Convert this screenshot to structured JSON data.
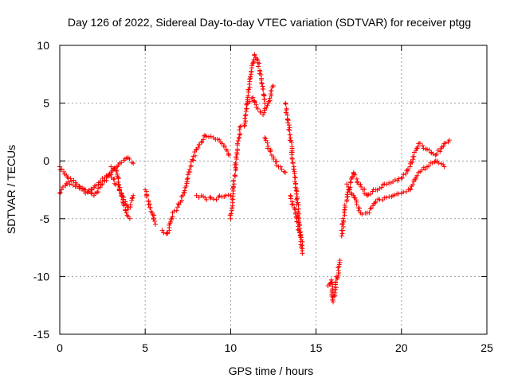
{
  "chart_data": {
    "type": "scatter",
    "title": "Day 126 of 2022, Sidereal Day-to-day VTEC variation (SDTVAR) for receiver ptgg",
    "xlabel": "GPS time / hours",
    "ylabel": "SDTVAR / TECUs",
    "xlim": [
      0,
      25
    ],
    "ylim": [
      -15,
      10
    ],
    "x_ticks": [
      0,
      5,
      10,
      15,
      20,
      25
    ],
    "y_ticks": [
      -15,
      -10,
      -5,
      0,
      5,
      10
    ],
    "x_tick_labels": [
      "0",
      "5",
      "10",
      "15",
      "20",
      "25"
    ],
    "y_tick_labels": [
      "-15",
      "-10",
      "-5",
      "0",
      "5",
      "10"
    ],
    "grid": true,
    "marker": "+",
    "marker_color": "#ff0000",
    "series": [
      {
        "name": "SDTVAR",
        "segments": [
          {
            "x": [
              0.0,
              0.5,
              1.0,
              1.5,
              2.0,
              2.5,
              3.0,
              3.5,
              4.0,
              4.3
            ],
            "y": [
              -0.5,
              -1.5,
              -2.0,
              -2.5,
              -3.0,
              -2.0,
              -1.0,
              -0.2,
              0.3,
              -0.2
            ]
          },
          {
            "x": [
              0.0,
              0.5,
              1.0,
              1.5,
              2.0,
              2.5,
              3.0,
              3.5,
              4.0,
              4.3
            ],
            "y": [
              -2.8,
              -1.8,
              -2.2,
              -2.8,
              -2.3,
              -1.5,
              -1.2,
              -2.5,
              -4.2,
              -3.0
            ]
          },
          {
            "x": [
              3.0,
              3.3,
              3.6,
              3.9,
              4.1
            ],
            "y": [
              -0.5,
              -0.8,
              -3.0,
              -4.5,
              -5.0
            ]
          },
          {
            "x": [
              5.0,
              5.2,
              5.4,
              5.6
            ],
            "y": [
              -2.5,
              -3.5,
              -4.5,
              -5.5
            ]
          },
          {
            "x": [
              6.0,
              6.3,
              6.6,
              6.9,
              7.2,
              7.5
            ],
            "y": [
              -6.0,
              -6.3,
              -4.5,
              -4.0,
              -3.0,
              -1.5
            ]
          },
          {
            "x": [
              7.5,
              8.0,
              8.5,
              9.0,
              9.5,
              9.9
            ],
            "y": [
              -1.2,
              1.0,
              2.2,
              2.0,
              1.5,
              0.5
            ]
          },
          {
            "x": [
              8.0,
              8.5,
              9.0,
              9.5,
              10.0
            ],
            "y": [
              -3.0,
              -3.2,
              -3.3,
              -3.1,
              -3.0
            ]
          },
          {
            "x": [
              10.0,
              10.2,
              10.4,
              10.6
            ],
            "y": [
              -5.0,
              -2.0,
              1.5,
              3.0
            ]
          },
          {
            "x": [
              10.8,
              11.0,
              11.2,
              11.4,
              11.6,
              11.8,
              12.0
            ],
            "y": [
              3.0,
              5.5,
              7.5,
              9.2,
              8.5,
              7.0,
              5.0
            ]
          },
          {
            "x": [
              11.0,
              11.3,
              11.6,
              11.9,
              12.2,
              12.5
            ],
            "y": [
              5.0,
              5.5,
              4.5,
              4.0,
              5.0,
              6.5
            ]
          },
          {
            "x": [
              12.0,
              12.4,
              12.8,
              13.2
            ],
            "y": [
              2.0,
              0.5,
              -0.5,
              -1.0
            ]
          },
          {
            "x": [
              13.2,
              13.5,
              13.8,
              14.0,
              14.2
            ],
            "y": [
              5.0,
              2.0,
              -2.0,
              -5.0,
              -8.0
            ]
          },
          {
            "x": [
              13.5,
              13.8,
              14.0,
              14.2
            ],
            "y": [
              -3.0,
              -4.5,
              -6.0,
              -7.0
            ]
          },
          {
            "x": [
              15.7,
              15.9,
              16.0,
              16.4
            ],
            "y": [
              -10.8,
              -10.3,
              -12.2,
              -8.6
            ]
          },
          {
            "x": [
              16.5,
              16.7,
              16.9,
              17.2,
              17.5,
              18.0,
              18.5,
              19.0,
              19.5,
              20.0,
              20.5,
              21.0,
              21.5,
              22.0,
              22.5,
              22.8
            ],
            "y": [
              -6.5,
              -4.0,
              -2.5,
              -1.0,
              -2.0,
              -3.0,
              -2.5,
              -2.0,
              -1.8,
              -1.5,
              -0.5,
              1.5,
              1.0,
              0.5,
              1.5,
              1.8
            ]
          },
          {
            "x": [
              16.8,
              17.2,
              17.6,
              18.0,
              18.5,
              19.0,
              19.5,
              20.0,
              20.5,
              21.0,
              21.5,
              22.0,
              22.5
            ],
            "y": [
              -2.0,
              -3.0,
              -4.5,
              -4.5,
              -3.5,
              -3.2,
              -3.0,
              -2.8,
              -2.5,
              -1.0,
              -0.5,
              0.0,
              -0.5
            ]
          }
        ]
      }
    ]
  }
}
